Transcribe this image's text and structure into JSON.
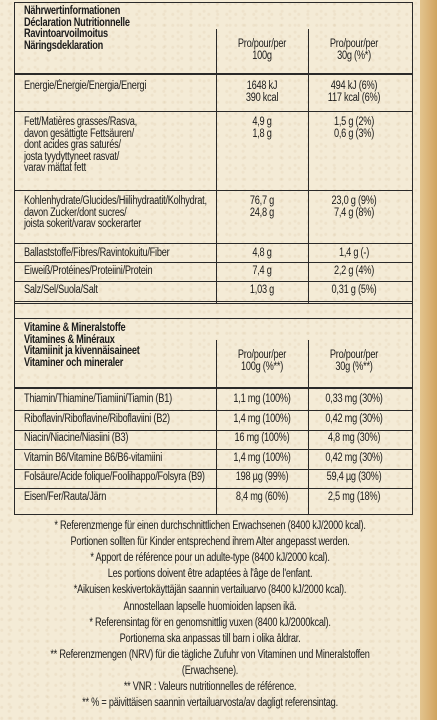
{
  "header": {
    "titles": [
      "Nährwertinformationen",
      "Déclaration Nutritionnelle",
      "Ravintoarvoilmoitus",
      "Näringsdeklaration"
    ],
    "col1": [
      "Pro/pour/per",
      "100g"
    ],
    "col2": [
      "Pro/pour/per",
      "30g (%*)"
    ]
  },
  "nutrients": [
    {
      "label": [
        "Energie/Énergie/Energia/Energi"
      ],
      "v100": [
        "1648 kJ",
        "390 kcal"
      ],
      "v30": [
        "494 kJ (6%)",
        "117 kcal (6%)"
      ]
    },
    {
      "label": [
        "Fett/Matières grasses/Rasva,",
        "davon gesättigte Fettsäuren/",
        "dont acides gras saturés/",
        "josta tyydyttyneet rasvat/",
        "varav mättat fett"
      ],
      "v100": [
        "4,9 g",
        "1,8 g"
      ],
      "v30": [
        "1,5 g (2%)",
        "0,6 g (3%)"
      ]
    },
    {
      "label": [
        "Kohlenhydrate/Glucides/Hiilihydraatit/Kolhydrat,",
        "davon Zucker/dont sucres/",
        "joista sokerit/varav sockerarter"
      ],
      "v100": [
        "76,7 g",
        "24,8 g"
      ],
      "v30": [
        "23,0 g (9%)",
        "7,4 g (8%)"
      ]
    },
    {
      "label": [
        "Ballaststoffe/Fibres/Ravintokuitu/Fiber"
      ],
      "v100": [
        "4,8 g"
      ],
      "v30": [
        "1,4 g (-)"
      ]
    },
    {
      "label": [
        "Eiweiß/Protéines/Proteiini/Protein"
      ],
      "v100": [
        "7,4 g"
      ],
      "v30": [
        "2,2 g (4%)"
      ]
    },
    {
      "label": [
        "Salz/Sel/Suola/Salt"
      ],
      "v100": [
        "1,03 g"
      ],
      "v30": [
        "0,31 g (5%)"
      ]
    }
  ],
  "vitamins_header": {
    "titles": [
      "Vitamine & Mineralstoffe",
      "Vitamines & Minéraux",
      "Vitamiinit ja kivennäisaineet",
      "Vitaminer och mineraler"
    ],
    "col1": [
      "Pro/pour/per",
      "100g (%**)"
    ],
    "col2": [
      "Pro/pour/per",
      "30g (%**)"
    ]
  },
  "vitamins": [
    {
      "label": "Thiamin/Thiamine/Tiamiini/Tiamin (B1)",
      "v100": "1,1 mg (100%)",
      "v30": "0,33 mg (30%)"
    },
    {
      "label": "Riboflavin/Riboflavine/Riboflaviini (B2)",
      "v100": "1,4 mg (100%)",
      "v30": "0,42 mg (30%)"
    },
    {
      "label": "Niacin/Niacine/Niasiini (B3)",
      "v100": "16 mg (100%)",
      "v30": "4,8 mg (30%)"
    },
    {
      "label": "Vitamin B6/Vitamine B6/B6-vitamiini",
      "v100": "1,4 mg (100%)",
      "v30": "0,42 mg (30%)"
    },
    {
      "label": "Folsäure/Acide folique/Foolihappo/Folsyra (B9)",
      "v100": "198 µg (99%)",
      "v30": "59,4 µg (30%)"
    },
    {
      "label": "Eisen/Fer/Rauta/Järn",
      "v100": "8,4 mg (60%)",
      "v30": "2,5 mg (18%)"
    }
  ],
  "footnotes": [
    "* Referenzmenge für einen durchschnittlichen Erwachsenen (8400 kJ/2000 kcal).",
    "Portionen sollten für Kinder entsprechend ihrem Alter angepasst werden.",
    "* Apport de référence pour un adulte-type (8400 kJ/2000 kcal).",
    "Les portions doivent être adaptées à l'âge de l'enfant.",
    "*Aikuisen keskivertokäyttäjän saannin vertailuarvo (8400 kJ/2000 kcal).",
    "Annostellaan lapselle huomioiden lapsen ikä.",
    "* Referensintag för en genomsnittlig vuxen (8400 kJ/2000kcal).",
    "Portionerna ska anpassas till barn i olika åldrar.",
    "** Referenzmengen (NRV) für die tägliche Zufuhr von Vitaminen und Mineralstoffen",
    "(Erwachsene).",
    "** VNR : Valeurs nutritionnelles de référence.",
    "** % = päivittäisen saannin vertailuarvosta/av dagligt referensintag."
  ]
}
